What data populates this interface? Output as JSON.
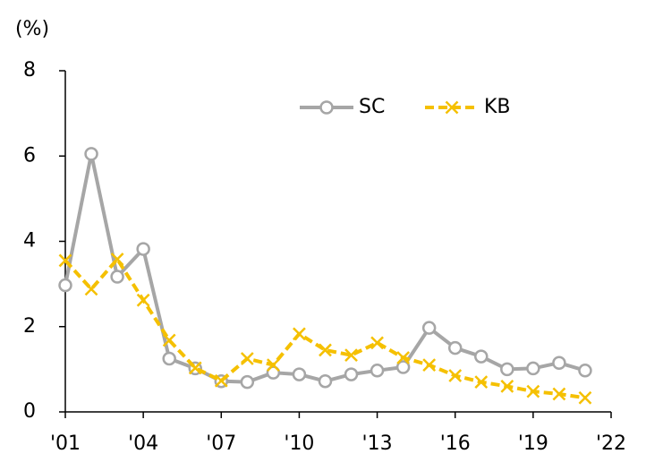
{
  "chart_data": {
    "type": "line",
    "y_label": "(%)",
    "x": [
      2001,
      2002,
      2003,
      2004,
      2005,
      2006,
      2007,
      2008,
      2009,
      2010,
      2011,
      2012,
      2013,
      2014,
      2015,
      2016,
      2017,
      2018,
      2019,
      2020,
      2021
    ],
    "series": [
      {
        "name": "SC",
        "color": "#a6a6a6",
        "marker": "circle",
        "dashed": false,
        "values": [
          2.97,
          6.05,
          3.17,
          3.82,
          1.25,
          1.02,
          0.72,
          0.7,
          0.92,
          0.88,
          0.72,
          0.88,
          0.97,
          1.05,
          1.97,
          1.5,
          1.3,
          1.0,
          1.02,
          1.15,
          0.97
        ]
      },
      {
        "name": "KB",
        "color": "#f5c000",
        "marker": "x",
        "dashed": true,
        "values": [
          3.55,
          2.88,
          3.58,
          2.62,
          1.68,
          1.03,
          0.73,
          1.25,
          1.1,
          1.83,
          1.45,
          1.33,
          1.62,
          1.27,
          1.1,
          0.85,
          0.7,
          0.6,
          0.48,
          0.42,
          0.33
        ]
      }
    ],
    "xlim": [
      2001,
      2022
    ],
    "xticks": [
      {
        "value": 2001,
        "label": "'01"
      },
      {
        "value": 2004,
        "label": "'04"
      },
      {
        "value": 2007,
        "label": "'07"
      },
      {
        "value": 2010,
        "label": "'10"
      },
      {
        "value": 2013,
        "label": "'13"
      },
      {
        "value": 2016,
        "label": "'16"
      },
      {
        "value": 2019,
        "label": "'19"
      },
      {
        "value": 2022,
        "label": "'22"
      }
    ],
    "ylim": [
      0,
      8
    ],
    "yticks": [
      0,
      2,
      4,
      6,
      8
    ],
    "legend": "top-right",
    "grid": false
  }
}
